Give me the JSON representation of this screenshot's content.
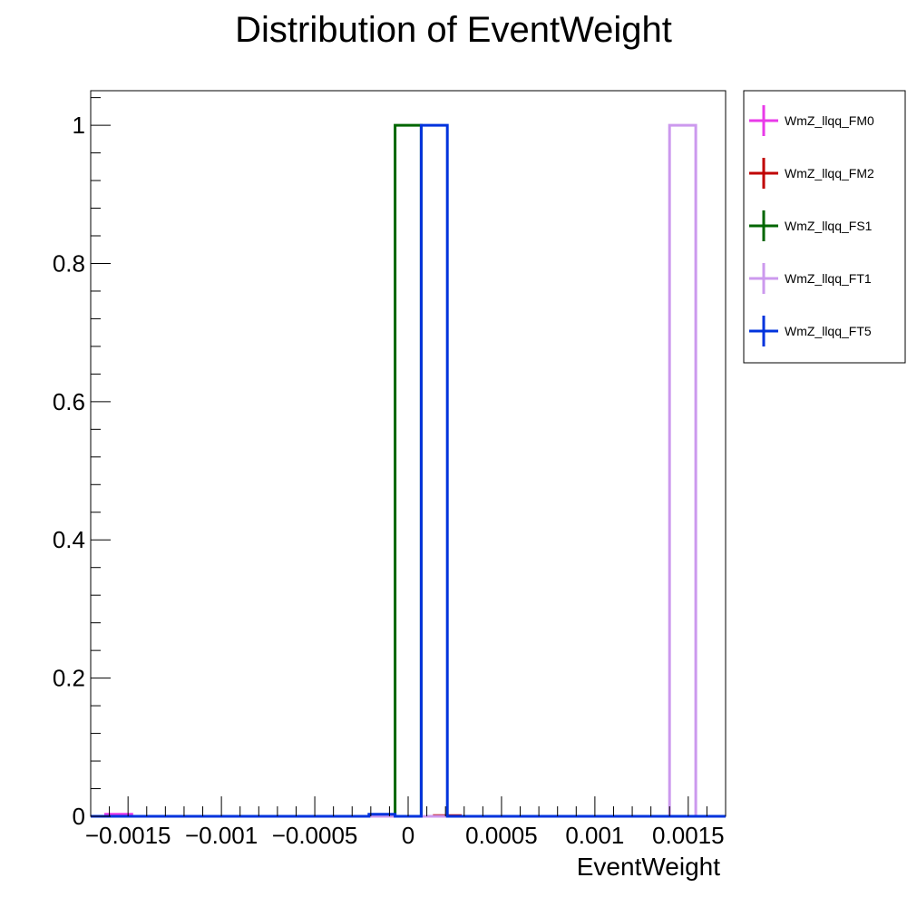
{
  "chart_data": {
    "type": "histogram",
    "title": "Distribution of EventWeight",
    "xlabel": "EventWeight",
    "ylabel": "",
    "xlim": [
      -0.0017,
      0.0017
    ],
    "ylim": [
      0,
      1.05
    ],
    "grid": false,
    "legend_position": "outside-right-top",
    "x_tick_labels": [
      "−0.0015",
      "−0.001",
      "−0.0005",
      "0",
      "0.0005",
      "0.001",
      "0.0015"
    ],
    "x_tick_values": [
      -0.0015,
      -0.001,
      -0.0005,
      0,
      0.0005,
      0.001,
      0.0015
    ],
    "y_tick_labels": [
      "0",
      "0.2",
      "0.4",
      "0.6",
      "0.8",
      "1"
    ],
    "y_tick_values": [
      0,
      0.2,
      0.4,
      0.6,
      0.8,
      1
    ],
    "series": [
      {
        "name": "WmZ_llqq_FM0",
        "color": "#e83ae8",
        "bars": [
          {
            "x0": -0.00162,
            "x1": -0.00148,
            "y": 0.003
          }
        ]
      },
      {
        "name": "WmZ_llqq_FM2",
        "color": "#c00000",
        "bars": [
          {
            "x0": 0.00014,
            "x1": 0.00028,
            "y": 0.001
          }
        ]
      },
      {
        "name": "WmZ_llqq_FS1",
        "color": "#006600",
        "bars": [
          {
            "x0": -7e-05,
            "x1": 7e-05,
            "y": 1.0
          }
        ]
      },
      {
        "name": "WmZ_llqq_FT1",
        "color": "#cc99ee",
        "bars": [
          {
            "x0": 0.0014,
            "x1": 0.00154,
            "y": 1.0
          }
        ]
      },
      {
        "name": "WmZ_llqq_FT5",
        "color": "#0033dd",
        "bars": [
          {
            "x0": -0.00021,
            "x1": -7e-05,
            "y": 0.003
          },
          {
            "x0": 7e-05,
            "x1": 0.00021,
            "y": 1.0
          }
        ]
      }
    ]
  }
}
